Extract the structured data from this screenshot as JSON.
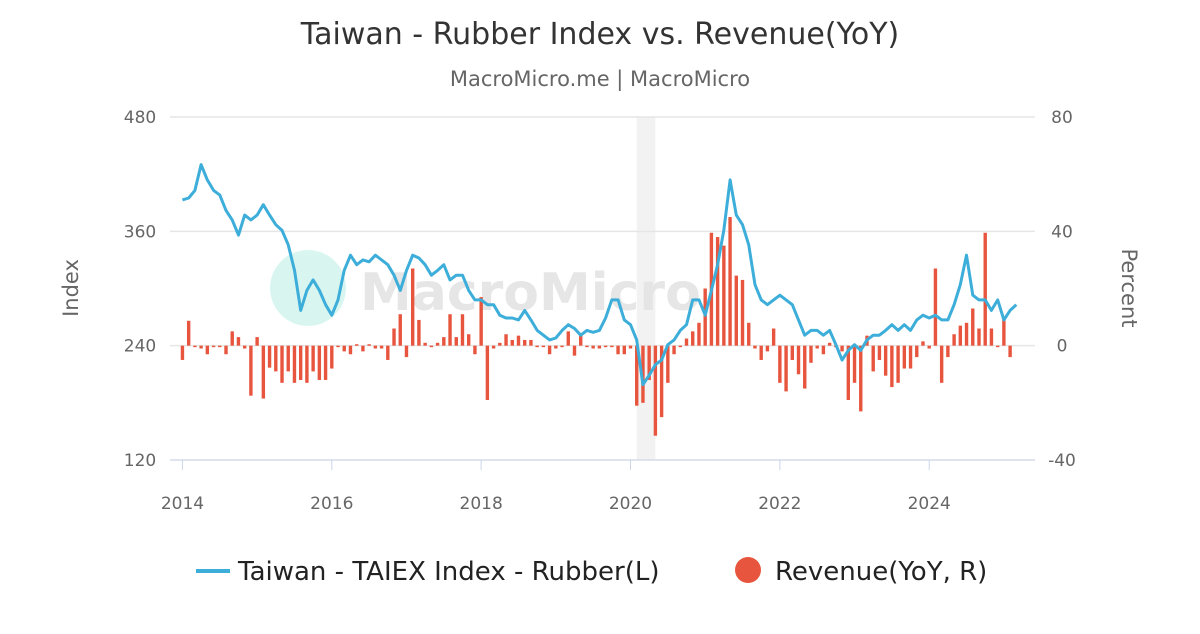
{
  "chart_data": {
    "type": "line+bar",
    "title": "Taiwan - Rubber Index vs. Revenue(YoY)",
    "subtitle": "MacroMicro.me | MacroMicro",
    "watermark": "MacroMicro",
    "ylabel_left": "Index",
    "ylabel_right": "Percent",
    "ylim_left": [
      120,
      480
    ],
    "ylim_right": [
      -40,
      80
    ],
    "yticks_left": [
      "480",
      "360",
      "240",
      "120"
    ],
    "yticks_right": [
      "80",
      "40",
      "0",
      "-40"
    ],
    "xticks": [
      "2014",
      "2016",
      "2018",
      "2020",
      "2022",
      "2024"
    ],
    "xlim": [
      "2013-11",
      "2025-06"
    ],
    "grid": true,
    "legend_placement": "bottom",
    "shaded_range": [
      "2020-02",
      "2020-05"
    ],
    "colors": {
      "line": "#3daed9",
      "bar": "#e8553e",
      "shade": "#f2f2f2",
      "grid": "#e6e6e6",
      "watermark_circle": "#d5f5ef"
    },
    "x": [
      "2014-01",
      "2014-02",
      "2014-03",
      "2014-04",
      "2014-05",
      "2014-06",
      "2014-07",
      "2014-08",
      "2014-09",
      "2014-10",
      "2014-11",
      "2014-12",
      "2015-01",
      "2015-02",
      "2015-03",
      "2015-04",
      "2015-05",
      "2015-06",
      "2015-07",
      "2015-08",
      "2015-09",
      "2015-10",
      "2015-11",
      "2015-12",
      "2016-01",
      "2016-02",
      "2016-03",
      "2016-04",
      "2016-05",
      "2016-06",
      "2016-07",
      "2016-08",
      "2016-09",
      "2016-10",
      "2016-11",
      "2016-12",
      "2017-01",
      "2017-02",
      "2017-03",
      "2017-04",
      "2017-05",
      "2017-06",
      "2017-07",
      "2017-08",
      "2017-09",
      "2017-10",
      "2017-11",
      "2017-12",
      "2018-01",
      "2018-02",
      "2018-03",
      "2018-04",
      "2018-05",
      "2018-06",
      "2018-07",
      "2018-08",
      "2018-09",
      "2018-10",
      "2018-11",
      "2018-12",
      "2019-01",
      "2019-02",
      "2019-03",
      "2019-04",
      "2019-05",
      "2019-06",
      "2019-07",
      "2019-08",
      "2019-09",
      "2019-10",
      "2019-11",
      "2019-12",
      "2020-01",
      "2020-02",
      "2020-03",
      "2020-04",
      "2020-05",
      "2020-06",
      "2020-07",
      "2020-08",
      "2020-09",
      "2020-10",
      "2020-11",
      "2020-12",
      "2021-01",
      "2021-02",
      "2021-03",
      "2021-04",
      "2021-05",
      "2021-06",
      "2021-07",
      "2021-08",
      "2021-09",
      "2021-10",
      "2021-11",
      "2021-12",
      "2022-01",
      "2022-02",
      "2022-03",
      "2022-04",
      "2022-05",
      "2022-06",
      "2022-07",
      "2022-08",
      "2022-09",
      "2022-10",
      "2022-11",
      "2022-12",
      "2023-01",
      "2023-02",
      "2023-03",
      "2023-04",
      "2023-05",
      "2023-06",
      "2023-07",
      "2023-08",
      "2023-09",
      "2023-10",
      "2023-11",
      "2023-12",
      "2024-01",
      "2024-02",
      "2024-03",
      "2024-04",
      "2024-05",
      "2024-06",
      "2024-07",
      "2024-08",
      "2024-09",
      "2024-10",
      "2024-11",
      "2024-12",
      "2025-01",
      "2025-02",
      "2025-03"
    ],
    "series": [
      {
        "name": "Taiwan - TAIEX Index - Rubber(L)",
        "type": "line",
        "axis": "left",
        "values": [
          393,
          395,
          403,
          430,
          414,
          403,
          398,
          382,
          372,
          356,
          377,
          372,
          377,
          388,
          377,
          367,
          361,
          346,
          319,
          277,
          298,
          309,
          298,
          283,
          272,
          288,
          319,
          335,
          325,
          330,
          328,
          335,
          330,
          325,
          314,
          298,
          319,
          335,
          332,
          325,
          314,
          319,
          325,
          309,
          314,
          314,
          298,
          288,
          288,
          283,
          283,
          272,
          269,
          269,
          267,
          277,
          267,
          256,
          251,
          246,
          248,
          256,
          262,
          258,
          251,
          256,
          254,
          256,
          269,
          288,
          288,
          267,
          262,
          246,
          199,
          209,
          220,
          225,
          241,
          246,
          256,
          262,
          288,
          288,
          272,
          298,
          325,
          361,
          414,
          377,
          367,
          346,
          304,
          288,
          283,
          288,
          293,
          288,
          283,
          267,
          251,
          256,
          256,
          251,
          256,
          241,
          225,
          235,
          241,
          235,
          246,
          251,
          251,
          256,
          262,
          256,
          262,
          256,
          267,
          272,
          269,
          272,
          267,
          267,
          283,
          304,
          335,
          293,
          288,
          288,
          277,
          288,
          267,
          277,
          283
        ]
      },
      {
        "name": "Revenue(YoY, R)",
        "type": "bar",
        "axis": "right",
        "values": [
          -5,
          8.7,
          0,
          -1,
          -3,
          0,
          0,
          -3,
          5,
          3,
          -1,
          -17.5,
          3,
          -18.5,
          -7.7,
          -9,
          -13,
          -9,
          -13,
          -12,
          -13,
          -9,
          -12,
          -12,
          -8,
          -0.5,
          -2,
          -3,
          0.5,
          -2,
          0.5,
          -1,
          -1,
          -5,
          6,
          11,
          -4,
          27,
          9,
          1,
          0,
          1,
          3,
          11,
          3,
          11,
          4,
          -3,
          17,
          -19,
          -1,
          1,
          4,
          2,
          3.5,
          2,
          2,
          0,
          0,
          -3,
          -1,
          0,
          5,
          -3.5,
          4,
          0,
          -1,
          -1,
          0,
          0,
          -3,
          -3,
          -1,
          -21,
          -20,
          -12,
          -31.5,
          -25,
          -13,
          -3,
          0,
          2.5,
          5,
          8,
          20,
          39.5,
          38,
          35,
          45,
          24.5,
          23,
          8,
          -1,
          -5,
          -2,
          6,
          -13,
          -16,
          -5,
          -10,
          -15,
          -6,
          -1,
          -3,
          1,
          0,
          -2,
          -19,
          -13,
          -23,
          3.5,
          -9,
          -5,
          -10.5,
          -14.5,
          -13,
          -8,
          -8,
          -4,
          1.5,
          -1,
          27,
          -13,
          -4,
          4,
          7,
          8,
          13,
          6,
          39.5,
          6,
          0,
          9.5,
          -4,
          null
        ]
      }
    ]
  }
}
